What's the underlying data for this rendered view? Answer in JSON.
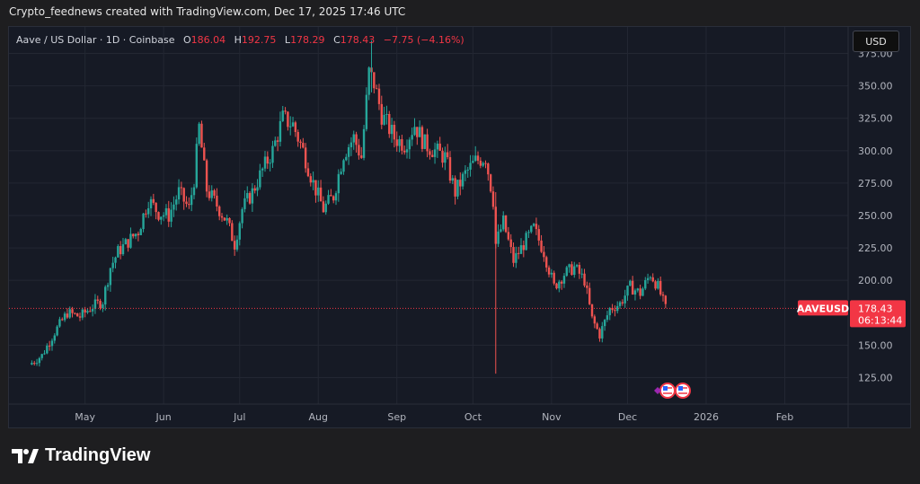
{
  "header": {
    "caption": "Crypto_feednews created with TradingView.com, Dec 17, 2025 17:46 UTC"
  },
  "legend": {
    "symbol": "Aave / US Dollar · 1D · Coinbase",
    "open_label": "O",
    "open": "186.04",
    "high_label": "H",
    "high": "192.75",
    "low_label": "L",
    "low": "178.29",
    "close_label": "C",
    "close": "178.43",
    "change": "−7.75 (−4.16%)"
  },
  "currency_button": "USD",
  "price_tag": {
    "symbol": "AAVEUSD",
    "price": "178.43",
    "countdown": "06:13:44"
  },
  "footer": {
    "brand": "TradingView",
    "logo_icon": "tradingview-logo-icon"
  },
  "colors": {
    "up": "#26a69a",
    "down": "#ef5350",
    "background": "#161a25",
    "price_line": "#f23645"
  },
  "chart_data": {
    "type": "candlestick",
    "y_ticks": [
      "375.00",
      "350.00",
      "325.00",
      "300.00",
      "275.00",
      "250.00",
      "225.00",
      "200.00",
      "150.00",
      "125.00"
    ],
    "x_ticks": [
      "May",
      "Jun",
      "Jul",
      "Aug",
      "Sep",
      "Oct",
      "Nov",
      "Dec",
      "2026",
      "Feb"
    ],
    "ylim": [
      108,
      392
    ],
    "last_price": 178.43,
    "series": [
      {
        "date": "2025-04-10",
        "close": 135
      },
      {
        "date": "2025-04-15",
        "close": 142
      },
      {
        "date": "2025-04-20",
        "close": 160
      },
      {
        "date": "2025-04-25",
        "close": 175
      },
      {
        "date": "2025-04-30",
        "close": 172
      },
      {
        "date": "2025-05-05",
        "close": 180
      },
      {
        "date": "2025-05-09",
        "close": 184
      },
      {
        "date": "2025-05-12",
        "close": 210
      },
      {
        "date": "2025-05-15",
        "close": 222
      },
      {
        "date": "2025-05-19",
        "close": 230
      },
      {
        "date": "2025-05-23",
        "close": 238
      },
      {
        "date": "2025-05-27",
        "close": 262
      },
      {
        "date": "2025-05-31",
        "close": 252
      },
      {
        "date": "2025-06-04",
        "close": 250
      },
      {
        "date": "2025-06-08",
        "close": 268
      },
      {
        "date": "2025-06-12",
        "close": 255
      },
      {
        "date": "2025-06-14",
        "close": 278
      },
      {
        "date": "2025-06-16",
        "close": 318
      },
      {
        "date": "2025-06-19",
        "close": 270
      },
      {
        "date": "2025-06-23",
        "close": 258
      },
      {
        "date": "2025-06-27",
        "close": 245
      },
      {
        "date": "2025-06-30",
        "close": 228
      },
      {
        "date": "2025-07-03",
        "close": 255
      },
      {
        "date": "2025-07-07",
        "close": 268
      },
      {
        "date": "2025-07-11",
        "close": 285
      },
      {
        "date": "2025-07-15",
        "close": 300
      },
      {
        "date": "2025-07-19",
        "close": 325
      },
      {
        "date": "2025-07-23",
        "close": 320
      },
      {
        "date": "2025-07-27",
        "close": 300
      },
      {
        "date": "2025-07-31",
        "close": 275
      },
      {
        "date": "2025-08-04",
        "close": 255
      },
      {
        "date": "2025-08-08",
        "close": 265
      },
      {
        "date": "2025-08-12",
        "close": 298
      },
      {
        "date": "2025-08-16",
        "close": 310
      },
      {
        "date": "2025-08-19",
        "close": 295
      },
      {
        "date": "2025-08-22",
        "close": 360
      },
      {
        "date": "2025-08-24",
        "close": 352
      },
      {
        "date": "2025-08-27",
        "close": 328
      },
      {
        "date": "2025-09-01",
        "close": 310
      },
      {
        "date": "2025-09-05",
        "close": 305
      },
      {
        "date": "2025-09-09",
        "close": 320
      },
      {
        "date": "2025-09-13",
        "close": 305
      },
      {
        "date": "2025-09-17",
        "close": 300
      },
      {
        "date": "2025-09-21",
        "close": 295
      },
      {
        "date": "2025-09-25",
        "close": 268
      },
      {
        "date": "2025-09-29",
        "close": 282
      },
      {
        "date": "2025-10-03",
        "close": 292
      },
      {
        "date": "2025-10-07",
        "close": 295
      },
      {
        "date": "2025-10-10",
        "close": 262
      },
      {
        "date": "2025-10-11",
        "close": 228
      },
      {
        "date": "2025-10-14",
        "close": 245
      },
      {
        "date": "2025-10-18",
        "close": 215
      },
      {
        "date": "2025-10-22",
        "close": 228
      },
      {
        "date": "2025-10-26",
        "close": 240
      },
      {
        "date": "2025-10-30",
        "close": 222
      },
      {
        "date": "2025-11-03",
        "close": 195
      },
      {
        "date": "2025-11-07",
        "close": 205
      },
      {
        "date": "2025-11-11",
        "close": 210
      },
      {
        "date": "2025-11-15",
        "close": 200
      },
      {
        "date": "2025-11-18",
        "close": 170
      },
      {
        "date": "2025-11-21",
        "close": 158
      },
      {
        "date": "2025-11-25",
        "close": 178
      },
      {
        "date": "2025-11-29",
        "close": 182
      },
      {
        "date": "2025-12-03",
        "close": 195
      },
      {
        "date": "2025-12-07",
        "close": 190
      },
      {
        "date": "2025-12-11",
        "close": 205
      },
      {
        "date": "2025-12-14",
        "close": 195
      },
      {
        "date": "2025-12-17",
        "close": 178
      }
    ]
  }
}
